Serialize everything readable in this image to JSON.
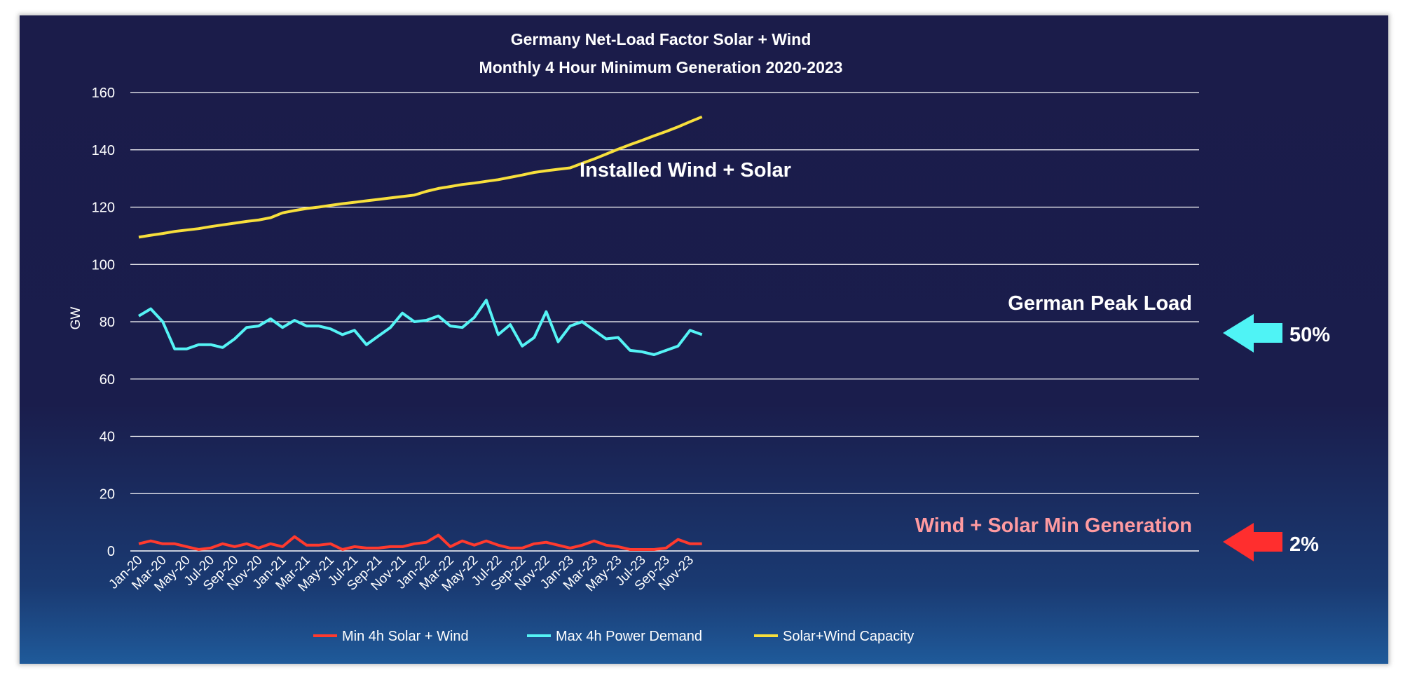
{
  "chart_data": {
    "type": "line",
    "title": "Germany Net-Load Factor Solar + Wind",
    "subtitle": "Monthly 4 Hour Minimum Generation 2020-2023",
    "ylabel": "GW",
    "ylim": [
      0,
      160
    ],
    "yticks": [
      "0",
      "20",
      "40",
      "60",
      "80",
      "100",
      "120",
      "140",
      "160"
    ],
    "grid": true,
    "legend_position": "bottom",
    "x": [
      "Jan-20",
      "Feb-20",
      "Mar-20",
      "Apr-20",
      "May-20",
      "Jun-20",
      "Jul-20",
      "Aug-20",
      "Sep-20",
      "Oct-20",
      "Nov-20",
      "Dec-20",
      "Jan-21",
      "Feb-21",
      "Mar-21",
      "Apr-21",
      "May-21",
      "Jun-21",
      "Jul-21",
      "Aug-21",
      "Sep-21",
      "Oct-21",
      "Nov-21",
      "Dec-21",
      "Jan-22",
      "Feb-22",
      "Mar-22",
      "Apr-22",
      "May-22",
      "Jun-22",
      "Jul-22",
      "Aug-22",
      "Sep-22",
      "Oct-22",
      "Nov-22",
      "Dec-22",
      "Jan-23",
      "Feb-23",
      "Mar-23",
      "Apr-23",
      "May-23",
      "Jun-23",
      "Jul-23",
      "Aug-23",
      "Sep-23",
      "Oct-23",
      "Nov-23",
      "Dec-23"
    ],
    "xtick_labels": [
      "Jan-20",
      "Mar-20",
      "May-20",
      "Jul-20",
      "Sep-20",
      "Nov-20",
      "Jan-21",
      "Mar-21",
      "May-21",
      "Jul-21",
      "Sep-21",
      "Nov-21",
      "Jan-22",
      "Mar-22",
      "May-22",
      "Jul-22",
      "Sep-22",
      "Nov-22",
      "Jan-23",
      "Mar-23",
      "May-23",
      "Jul-23",
      "Sep-23",
      "Nov-23"
    ],
    "series": [
      {
        "name": "Min 4h Solar + Wind",
        "color": "#ff3a2e",
        "values": [
          2.5,
          3.5,
          2.5,
          2.5,
          1.5,
          0.5,
          1,
          2.5,
          1.5,
          2.5,
          1,
          2.5,
          1.5,
          5,
          2,
          2,
          2.5,
          0.5,
          1.5,
          1,
          1,
          1.5,
          1.5,
          2.5,
          3,
          5.5,
          1.5,
          3.5,
          2,
          3.5,
          2,
          1,
          1,
          2.5,
          3,
          2,
          1,
          2,
          3.5,
          2,
          1.5,
          0.5,
          0.5,
          0.5,
          1,
          4,
          2.5,
          2.5
        ]
      },
      {
        "name": "Max 4h Power Demand",
        "color": "#55f3f5",
        "values": [
          82,
          84.5,
          80,
          70.5,
          70.5,
          72,
          72,
          71,
          74,
          78,
          78.5,
          81,
          78,
          80.5,
          78.5,
          78.5,
          77.5,
          75.5,
          77,
          72,
          75,
          78,
          83,
          80,
          80.5,
          82,
          78.5,
          78,
          81.5,
          87.5,
          75.5,
          79,
          71.5,
          74.5,
          83.5,
          73,
          78.5,
          80,
          77,
          74,
          74.5,
          70,
          69.5,
          68.5,
          70,
          71.5,
          77,
          75.5
        ]
      },
      {
        "name": "Solar+Wind Capacity",
        "color": "#f7df3c",
        "values": [
          109.5,
          110.2,
          110.8,
          111.5,
          112,
          112.5,
          113.2,
          113.8,
          114.4,
          115,
          115.5,
          116.3,
          118,
          118.8,
          119.5,
          120,
          120.6,
          121.2,
          121.7,
          122.2,
          122.7,
          123.2,
          123.7,
          124.2,
          125.5,
          126.5,
          127.2,
          127.9,
          128.4,
          129,
          129.6,
          130.4,
          131.2,
          132.1,
          132.7,
          133.2,
          133.7,
          135.3,
          136.8,
          138.5,
          140.2,
          141.8,
          143.3,
          144.9,
          146.4,
          148,
          149.8,
          151.5
        ]
      }
    ],
    "annotations": [
      {
        "text": "Installed Wind + Solar",
        "color": "#ffffff"
      },
      {
        "text": "German Peak Load",
        "color": "#ffffff"
      },
      {
        "text": "Wind + Solar Min Generation",
        "color": "#ff9aa0"
      }
    ],
    "markers": [
      {
        "text": "50%",
        "arrow_color": "#4ff3f5"
      },
      {
        "text": "2%",
        "arrow_color": "#ff2e2e"
      }
    ]
  }
}
